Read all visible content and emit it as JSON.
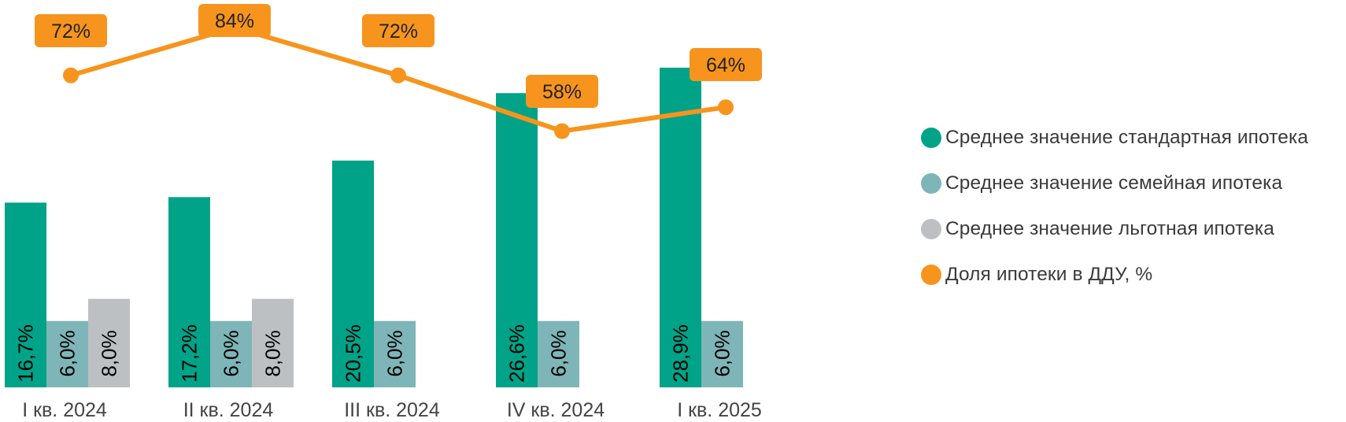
{
  "chart_data": {
    "type": "bar",
    "categories": [
      "I кв. 2024",
      "II кв. 2024",
      "III кв. 2024",
      "IV кв. 2024",
      "I кв. 2025"
    ],
    "series": [
      {
        "name": "Среднее значение стандартная ипотека",
        "type": "bar",
        "color": "#00A387",
        "values": [
          16.7,
          17.2,
          20.5,
          26.6,
          28.9
        ],
        "labels": [
          "16,7%",
          "17,2%",
          "20,5%",
          "26,6%",
          "28,9%"
        ]
      },
      {
        "name": "Среднее значение семейная ипотека",
        "type": "bar",
        "color": "#7EB5B8",
        "values": [
          6.0,
          6.0,
          6.0,
          6.0,
          6.0
        ],
        "labels": [
          "6,0%",
          "6,0%",
          "6,0%",
          "6,0%",
          "6,0%"
        ]
      },
      {
        "name": "Среднее значение льготная ипотека",
        "type": "bar",
        "color": "#BDC0C3",
        "values": [
          8.0,
          8.0,
          null,
          null,
          null
        ],
        "labels": [
          "8,0%",
          "8,0%",
          null,
          null,
          null
        ]
      },
      {
        "name": "Доля ипотеки в ДДУ, %",
        "type": "line",
        "color": "#F7941D",
        "values": [
          72,
          84,
          72,
          58,
          64
        ],
        "labels": [
          "72%",
          "84%",
          "72%",
          "58%",
          "64%"
        ]
      }
    ],
    "legend_position": "right",
    "grid": false
  }
}
